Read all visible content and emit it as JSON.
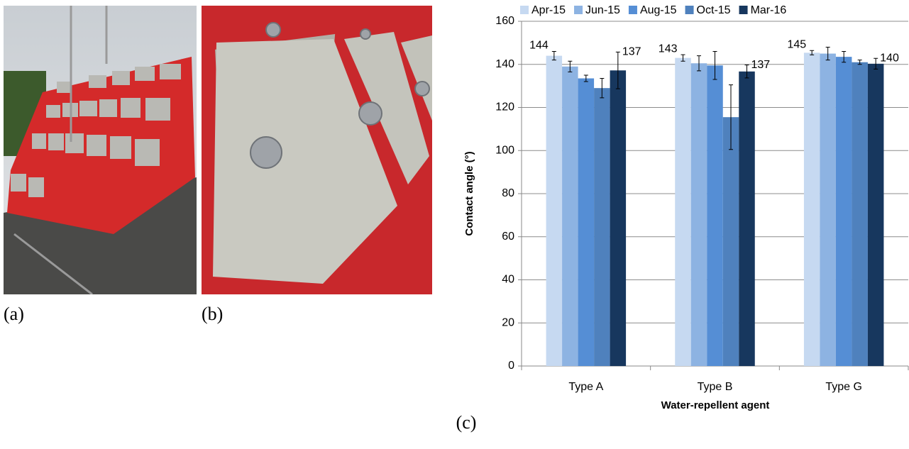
{
  "panel_labels": [
    "(a)",
    "(b)",
    "(c)"
  ],
  "chart_data": {
    "type": "bar",
    "categories": [
      "Type A",
      "Type B",
      "Type G"
    ],
    "series": [
      {
        "name": "Apr-15",
        "color": "#c6d9f1",
        "values": [
          144,
          143,
          145.4
        ],
        "errors": [
          2,
          1.5,
          1
        ],
        "value_labels": [
          "144",
          "143",
          "145"
        ]
      },
      {
        "name": "Jun-15",
        "color": "#8db3e2",
        "values": [
          139,
          140.5,
          145
        ],
        "errors": [
          2.5,
          3.5,
          3
        ]
      },
      {
        "name": "Aug-15",
        "color": "#558ed5",
        "values": [
          133.5,
          139.5,
          143.5
        ],
        "errors": [
          1.5,
          6.5,
          2.5
        ]
      },
      {
        "name": "Oct-15",
        "color": "#4f81bd",
        "values": [
          129,
          115.5,
          141
        ],
        "errors": [
          4.5,
          15,
          1
        ]
      },
      {
        "name": "Mar-16",
        "color": "#17375e",
        "values": [
          137.2,
          136.7,
          140.3
        ],
        "errors": [
          8.5,
          3,
          2.5
        ],
        "value_labels": [
          "137",
          "137",
          "140"
        ]
      }
    ],
    "ylabel": "Contact angle (°)",
    "xlabel": "Water-repellent agent",
    "ylim": [
      0,
      160
    ],
    "yticks": [
      0,
      20,
      40,
      60,
      80,
      100,
      120,
      140,
      160
    ],
    "grid": true,
    "legend": "top"
  }
}
